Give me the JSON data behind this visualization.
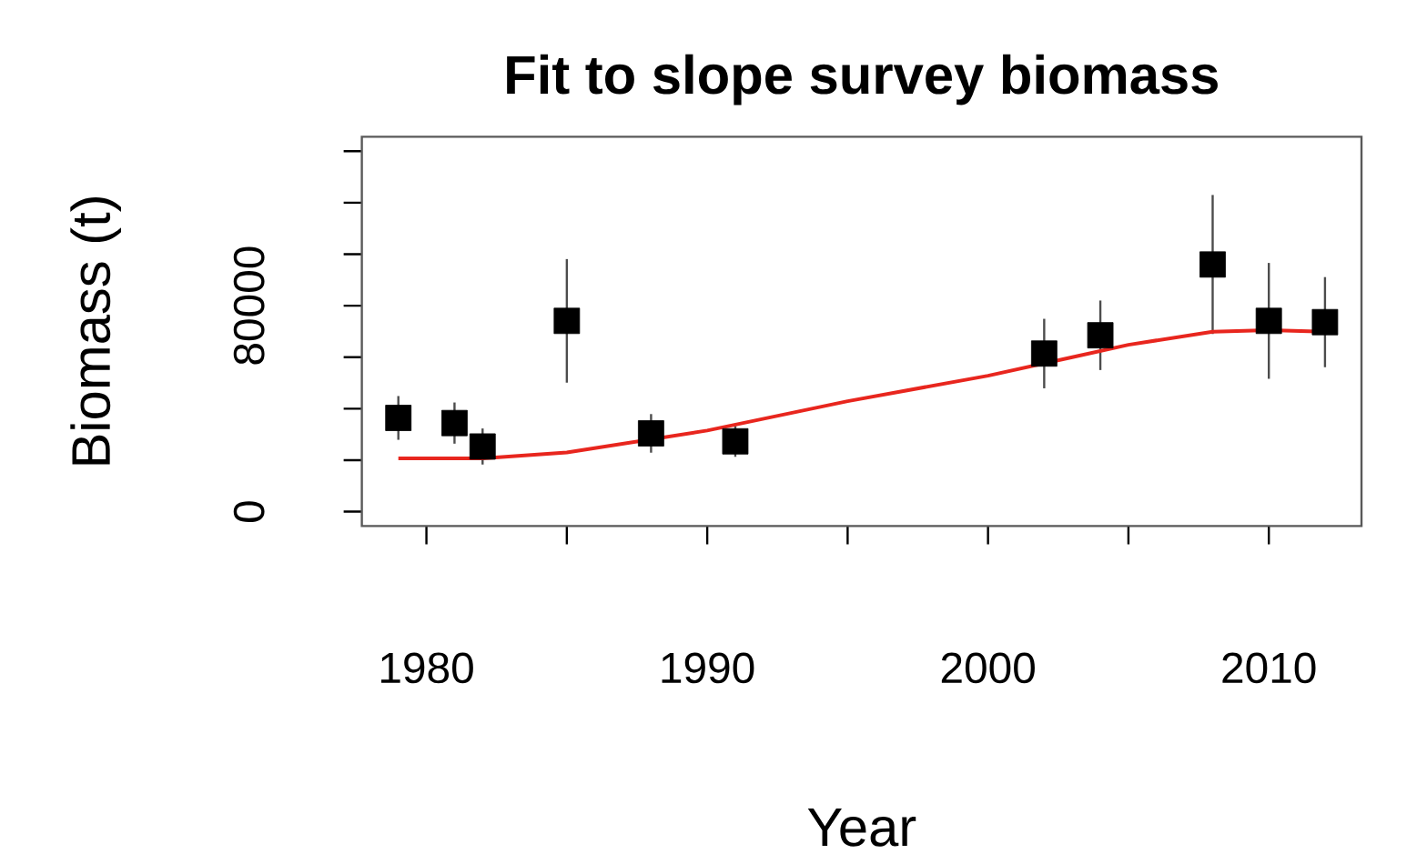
{
  "chart_data": {
    "type": "scatter",
    "title": "Fit to slope survey biomass",
    "xlabel": "Year",
    "ylabel": "Biomass (t)",
    "xlim": [
      1977.7,
      2013.3
    ],
    "ylim": [
      -5600,
      145600
    ],
    "xticks": [
      1980,
      {
        "value": 1985,
        "label": null
      },
      1990,
      {
        "value": 1995,
        "label": null
      },
      2000,
      {
        "value": 2005,
        "label": null
      },
      2010
    ],
    "yticks": [
      0,
      {
        "value": 20000,
        "label": null
      },
      {
        "value": 40000,
        "label": null
      },
      {
        "value": 60000,
        "label": null
      },
      80000,
      {
        "value": 100000,
        "label": null
      },
      {
        "value": 120000,
        "label": null
      },
      {
        "value": 140000,
        "label": null
      }
    ],
    "grid": false,
    "series": [
      {
        "type": "scatter",
        "color": "#000000",
        "marker": "square",
        "x": [
          1979,
          1981,
          1982,
          1985,
          1988,
          1991,
          2002,
          2004,
          2008,
          2010,
          2012
        ],
        "values": [
          36400,
          34400,
          25300,
          74100,
          30400,
          27300,
          61400,
          68500,
          96000,
          74100,
          73600
        ],
        "errors": [
          8500,
          8000,
          7000,
          24000,
          7500,
          6000,
          13500,
          13500,
          27000,
          22500,
          17500
        ]
      },
      {
        "type": "line",
        "color": "#e8261e",
        "marker": "none",
        "x": [
          1979,
          1982,
          1985,
          1990,
          1995,
          2000,
          2003,
          2005,
          2008,
          2010,
          2012
        ],
        "values": [
          20700,
          20700,
          23000,
          31500,
          42900,
          52800,
          60000,
          64800,
          69900,
          70500,
          69900
        ]
      }
    ]
  }
}
